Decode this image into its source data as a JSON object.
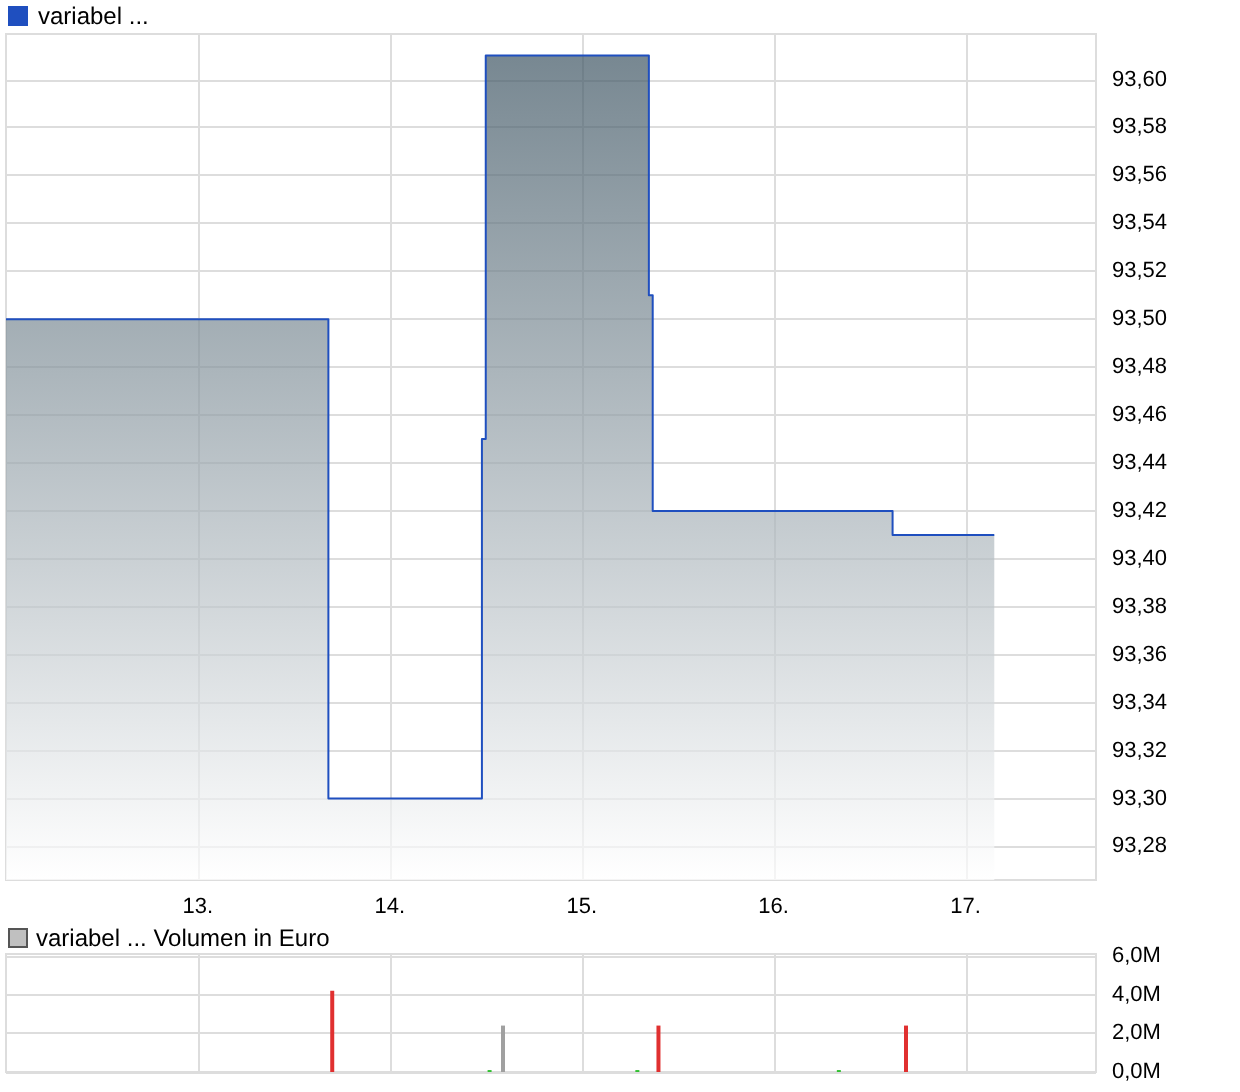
{
  "chart_data": [
    {
      "type": "area",
      "legend": "top left",
      "grid": true,
      "marker": "none",
      "xlim": [
        12.0,
        17.68
      ],
      "xticks": [
        {
          "value": 13,
          "label": "13."
        },
        {
          "value": 14,
          "label": "14."
        },
        {
          "value": 15,
          "label": "15."
        },
        {
          "value": 16,
          "label": "16."
        },
        {
          "value": 17,
          "label": "17."
        }
      ],
      "ylim": [
        93.266,
        93.619
      ],
      "yticks": [
        {
          "value": 93.28,
          "label": "93,28"
        },
        {
          "value": 93.3,
          "label": "93,30"
        },
        {
          "value": 93.32,
          "label": "93,32"
        },
        {
          "value": 93.34,
          "label": "93,34"
        },
        {
          "value": 93.36,
          "label": "93,36"
        },
        {
          "value": 93.38,
          "label": "93,38"
        },
        {
          "value": 93.4,
          "label": "93,40"
        },
        {
          "value": 93.42,
          "label": "93,42"
        },
        {
          "value": 93.44,
          "label": "93,44"
        },
        {
          "value": 93.46,
          "label": "93,46"
        },
        {
          "value": 93.48,
          "label": "93,48"
        },
        {
          "value": 93.5,
          "label": "93,50"
        },
        {
          "value": 93.52,
          "label": "93,52"
        },
        {
          "value": 93.54,
          "label": "93,54"
        },
        {
          "value": 93.56,
          "label": "93,56"
        },
        {
          "value": 93.58,
          "label": "93,58"
        },
        {
          "value": 93.6,
          "label": "93,60"
        }
      ],
      "series": [
        {
          "name": "variabel ...",
          "color": "#1f4fbf",
          "x": [
            12.0,
            13.68,
            13.68,
            14.48,
            14.48,
            14.5,
            14.5,
            15.35,
            15.35,
            15.37,
            15.37,
            16.62,
            16.62,
            17.15
          ],
          "values": [
            93.5,
            93.5,
            93.3,
            93.3,
            93.45,
            93.45,
            93.61,
            93.61,
            93.51,
            93.51,
            93.42,
            93.42,
            93.41,
            93.41
          ]
        }
      ]
    },
    {
      "type": "bar",
      "legend": "top left",
      "grid": true,
      "tick_labels": "y",
      "xlim": [
        12.0,
        17.68
      ],
      "xticks": [
        13,
        14,
        15,
        16,
        17
      ],
      "ylim": [
        0,
        6.1
      ],
      "yticks": [
        {
          "value": 0,
          "label": "0,0M"
        },
        {
          "value": 2,
          "label": "2,0M"
        },
        {
          "value": 4,
          "label": "4,0M"
        },
        {
          "value": 6,
          "label": "6,0M"
        }
      ],
      "series": [
        {
          "name": "variabel ... Volumen in Euro",
          "color": "#c0c0c0",
          "x": [
            13.7,
            14.52,
            14.59,
            15.29,
            15.4,
            16.34,
            16.69
          ],
          "values": [
            4.2,
            0.1,
            2.4,
            0.1,
            2.4,
            0.1,
            2.4
          ],
          "colors": [
            "#e03030",
            "#30c030",
            "#a0a0a0",
            "#30c030",
            "#e03030",
            "#30c030",
            "#e03030"
          ]
        }
      ]
    }
  ]
}
